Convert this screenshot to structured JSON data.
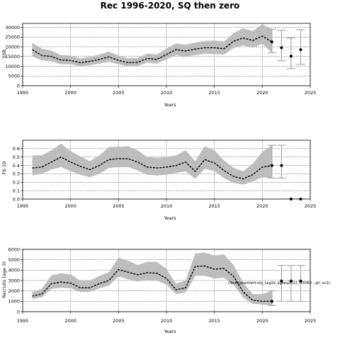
{
  "title": "Rec 1996-2020, SQ then zero",
  "annotation": "iTacAssessment.org_Leg2e_ageeq2022_r56062 ; git: ec2c",
  "chart_data": [
    {
      "type": "line",
      "xlabel": "Years",
      "ylabel": "SSB",
      "xlim": [
        1995,
        2025
      ],
      "ylim": [
        0,
        32000
      ],
      "x_ticks": [
        1995,
        2000,
        2005,
        2010,
        2015,
        2020,
        2025
      ],
      "y_ticks": [
        0,
        5000,
        10000,
        15000,
        20000,
        25000,
        30000
      ],
      "grid": true,
      "series": [
        {
          "x": [
            1996,
            1997,
            1998,
            1999,
            2000,
            2001,
            2002,
            2003,
            2004,
            2005,
            2006,
            2007,
            2008,
            2009,
            2010,
            2011,
            2012,
            2013,
            2014,
            2015,
            2016,
            2017,
            2018,
            2019,
            2020,
            2021
          ],
          "values": [
            18500,
            15500,
            15000,
            13200,
            13000,
            11800,
            12500,
            13500,
            14800,
            13000,
            11800,
            12000,
            14000,
            13500,
            16000,
            18500,
            17800,
            18800,
            19500,
            19500,
            19000,
            22800,
            24500,
            23200,
            25500,
            22500
          ],
          "lower": [
            15000,
            13000,
            12500,
            11000,
            11000,
            10000,
            10500,
            11300,
            12300,
            11000,
            10000,
            10200,
            11800,
            11300,
            13500,
            15700,
            15000,
            15700,
            16300,
            16300,
            16000,
            19300,
            20700,
            19500,
            21500,
            17000
          ],
          "upper": [
            22000,
            19000,
            18000,
            15700,
            15500,
            14000,
            14800,
            16000,
            17500,
            15500,
            14000,
            14300,
            16500,
            16000,
            19000,
            21700,
            21000,
            22200,
            23000,
            23200,
            22700,
            27000,
            29500,
            28000,
            31500,
            29000
          ]
        }
      ],
      "projection": {
        "x": [
          2022,
          2023,
          2024
        ],
        "values": [
          19500,
          15200,
          18500
        ],
        "lower": [
          12800,
          8800,
          11000
        ],
        "upper": [
          28500,
          24500,
          28800
        ]
      }
    },
    {
      "type": "line",
      "xlabel": "Years",
      "ylabel": "F6-10",
      "xlim": [
        1995,
        2025
      ],
      "ylim": [
        0,
        0.7
      ],
      "x_ticks": [
        1995,
        2000,
        2005,
        2010,
        2015,
        2020,
        2025
      ],
      "y_ticks": [
        0.0,
        0.1,
        0.2,
        0.3,
        0.4,
        0.5,
        0.6
      ],
      "grid": true,
      "series": [
        {
          "x": [
            1996,
            1997,
            1998,
            1999,
            2000,
            2001,
            2002,
            2003,
            2004,
            2005,
            2006,
            2007,
            2008,
            2009,
            2010,
            2011,
            2012,
            2013,
            2014,
            2015,
            2016,
            2017,
            2018,
            2019,
            2020,
            2021
          ],
          "values": [
            0.37,
            0.38,
            0.44,
            0.5,
            0.44,
            0.39,
            0.35,
            0.4,
            0.47,
            0.48,
            0.48,
            0.44,
            0.38,
            0.37,
            0.38,
            0.4,
            0.44,
            0.33,
            0.47,
            0.43,
            0.34,
            0.27,
            0.24,
            0.29,
            0.38,
            0.4
          ],
          "lower": [
            0.28,
            0.3,
            0.35,
            0.38,
            0.33,
            0.29,
            0.26,
            0.3,
            0.37,
            0.38,
            0.38,
            0.34,
            0.29,
            0.28,
            0.29,
            0.31,
            0.33,
            0.24,
            0.36,
            0.33,
            0.25,
            0.19,
            0.17,
            0.21,
            0.26,
            0.25
          ],
          "upper": [
            0.52,
            0.52,
            0.58,
            0.66,
            0.57,
            0.51,
            0.45,
            0.52,
            0.62,
            0.62,
            0.63,
            0.58,
            0.5,
            0.49,
            0.5,
            0.52,
            0.58,
            0.45,
            0.63,
            0.58,
            0.46,
            0.37,
            0.33,
            0.42,
            0.56,
            0.64
          ]
        }
      ],
      "projection": {
        "x": [
          2022,
          2023,
          2024
        ],
        "values": [
          0.4,
          0.0,
          0.0
        ],
        "lower": [
          0.25,
          0.0,
          0.0
        ],
        "upper": [
          0.64,
          0.0,
          0.0
        ]
      }
    },
    {
      "type": "line",
      "xlabel": "Years",
      "ylabel": "Recruits (age 3)",
      "xlim": [
        1995,
        2025
      ],
      "ylim": [
        0,
        6000
      ],
      "x_ticks": [
        1995,
        2000,
        2005,
        2010,
        2015,
        2020,
        2025
      ],
      "y_ticks": [
        0,
        1000,
        2000,
        3000,
        4000,
        5000,
        6000
      ],
      "grid": true,
      "series": [
        {
          "x": [
            1996,
            1997,
            1998,
            1999,
            2000,
            2001,
            2002,
            2003,
            2004,
            2005,
            2006,
            2007,
            2008,
            2009,
            2010,
            2011,
            2012,
            2013,
            2014,
            2015,
            2016,
            2017,
            2018,
            2019,
            2020,
            2021
          ],
          "values": [
            1500,
            1700,
            2700,
            2850,
            2750,
            2300,
            2300,
            2700,
            3000,
            4050,
            3800,
            3550,
            3750,
            3700,
            3200,
            2100,
            2300,
            4350,
            4400,
            4100,
            4150,
            3400,
            1900,
            1100,
            1000,
            1000
          ],
          "lower": [
            1200,
            1400,
            2200,
            2300,
            2250,
            1900,
            1900,
            2250,
            2500,
            3400,
            3100,
            2900,
            3050,
            3000,
            2600,
            1700,
            1850,
            3450,
            3450,
            3200,
            3250,
            2600,
            1350,
            750,
            700,
            600
          ],
          "upper": [
            1900,
            2200,
            3500,
            3700,
            3600,
            3000,
            3000,
            3450,
            3800,
            5200,
            4900,
            4500,
            4800,
            4800,
            4100,
            2700,
            3000,
            5600,
            5700,
            5400,
            5500,
            4500,
            2800,
            1700,
            1700,
            2000
          ]
        }
      ],
      "projection": {
        "x": [
          2022,
          2023,
          2024
        ],
        "values": [
          2950,
          2950,
          2950
        ],
        "lower": [
          1000,
          1000,
          1000
        ],
        "upper": [
          4450,
          4450,
          4450
        ]
      }
    }
  ]
}
